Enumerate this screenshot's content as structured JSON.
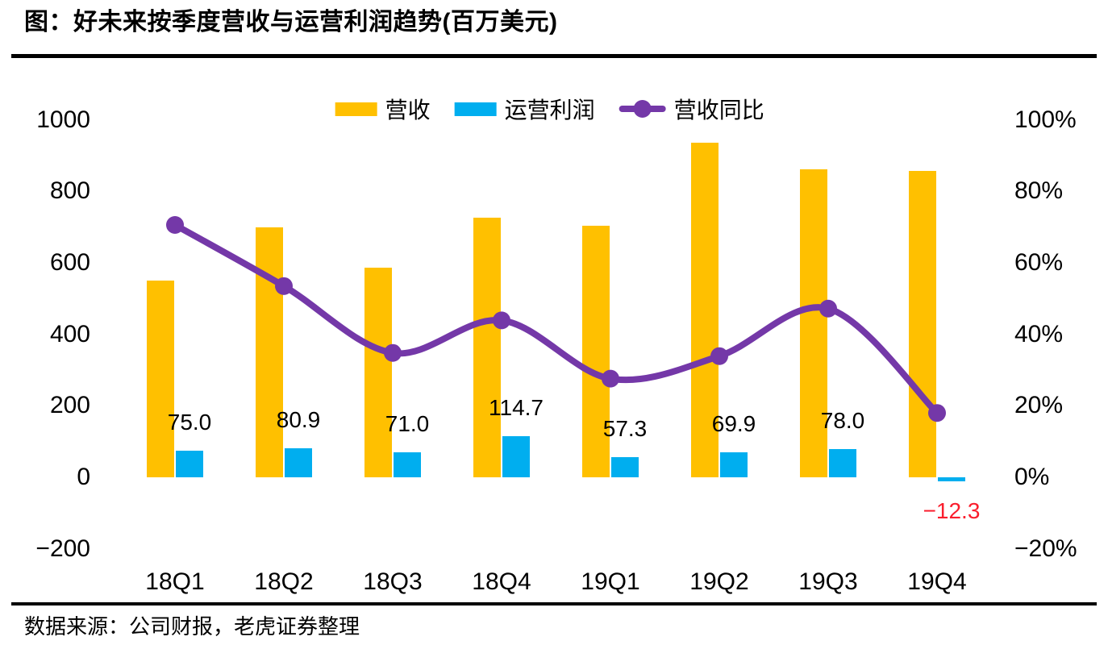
{
  "title": "图：好未来按季度营收与运营利润趋势(百万美元)",
  "source": "数据来源：公司财报，老虎证券整理",
  "colors": {
    "revenue_bar": "#FFC000",
    "profit_bar": "#00AEEF",
    "yoy_line": "#7438A8",
    "negative_label": "#FA1E2D",
    "text": "#000000",
    "rule": "#000000",
    "background": "#FFFFFF"
  },
  "chart_data": {
    "type": "combo",
    "title": "图：好未来按季度营收与运营利润趋势(百万美元)",
    "categories": [
      "18Q1",
      "18Q2",
      "18Q3",
      "18Q4",
      "19Q1",
      "19Q2",
      "19Q3",
      "19Q4"
    ],
    "series": [
      {
        "name": "营收",
        "type": "bar",
        "axis": "left",
        "color": "#FFC000",
        "values": [
          550,
          700,
          586,
          727,
          703,
          937,
          862,
          858
        ]
      },
      {
        "name": "运营利润",
        "type": "bar",
        "axis": "left",
        "color": "#00AEEF",
        "values": [
          75.0,
          80.9,
          71.0,
          114.7,
          57.3,
          69.9,
          78.0,
          -12.3
        ],
        "labels": [
          "75.0",
          "80.9",
          "71.0",
          "114.7",
          "57.3",
          "69.9",
          "78.0",
          "−12.3"
        ]
      },
      {
        "name": "营收同比",
        "type": "line",
        "axis": "right",
        "color": "#7438A8",
        "unit": "%",
        "values": [
          70.6,
          53.5,
          34.8,
          43.9,
          27.6,
          33.9,
          47.2,
          18.0
        ],
        "smooth": true,
        "markers": true
      }
    ],
    "left_axis": {
      "min": -200,
      "max": 1000,
      "step": 200,
      "tick_labels": [
        "1000",
        "800",
        "600",
        "400",
        "200",
        "0",
        "−200"
      ],
      "tick_values": [
        1000,
        800,
        600,
        400,
        200,
        0,
        -200
      ]
    },
    "right_axis": {
      "min": -20,
      "max": 100,
      "step": 20,
      "tick_labels": [
        "100%",
        "80%",
        "60%",
        "40%",
        "20%",
        "0%",
        "−20%"
      ],
      "tick_values": [
        100,
        80,
        60,
        40,
        20,
        0,
        -20
      ]
    },
    "grid": false,
    "legend_position": "top-center",
    "negative_label_color": "#FA1E2D",
    "source": "数据来源：公司财报，老虎证券整理"
  }
}
